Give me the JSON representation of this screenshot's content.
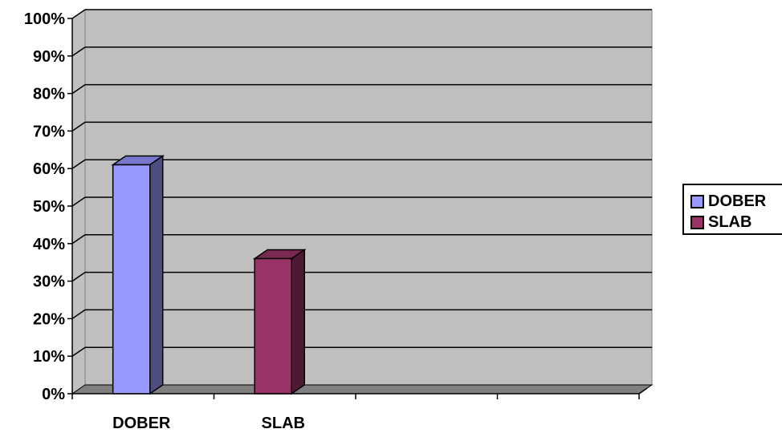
{
  "chart_data": {
    "type": "bar",
    "categories": [
      "DOBER",
      "SLAB",
      "",
      ""
    ],
    "series": [
      {
        "name": "DOBER",
        "values": [
          61,
          null,
          null,
          null
        ],
        "color": "#9999ff",
        "side_color": "#4d4d80",
        "top_color": "#7777cc"
      },
      {
        "name": "SLAB",
        "values": [
          null,
          36,
          null,
          null
        ],
        "color": "#993366",
        "side_color": "#4d1a33",
        "top_color": "#7a2952"
      }
    ],
    "yticks": [
      "0%",
      "10%",
      "20%",
      "30%",
      "40%",
      "50%",
      "60%",
      "70%",
      "80%",
      "90%",
      "100%"
    ],
    "ylim": [
      0,
      100
    ],
    "grid": true,
    "legend_position": "right",
    "plot_background": "#c0c0c0"
  },
  "legend": [
    {
      "label": "DOBER",
      "color": "#9999ff"
    },
    {
      "label": "SLAB",
      "color": "#993366"
    }
  ]
}
